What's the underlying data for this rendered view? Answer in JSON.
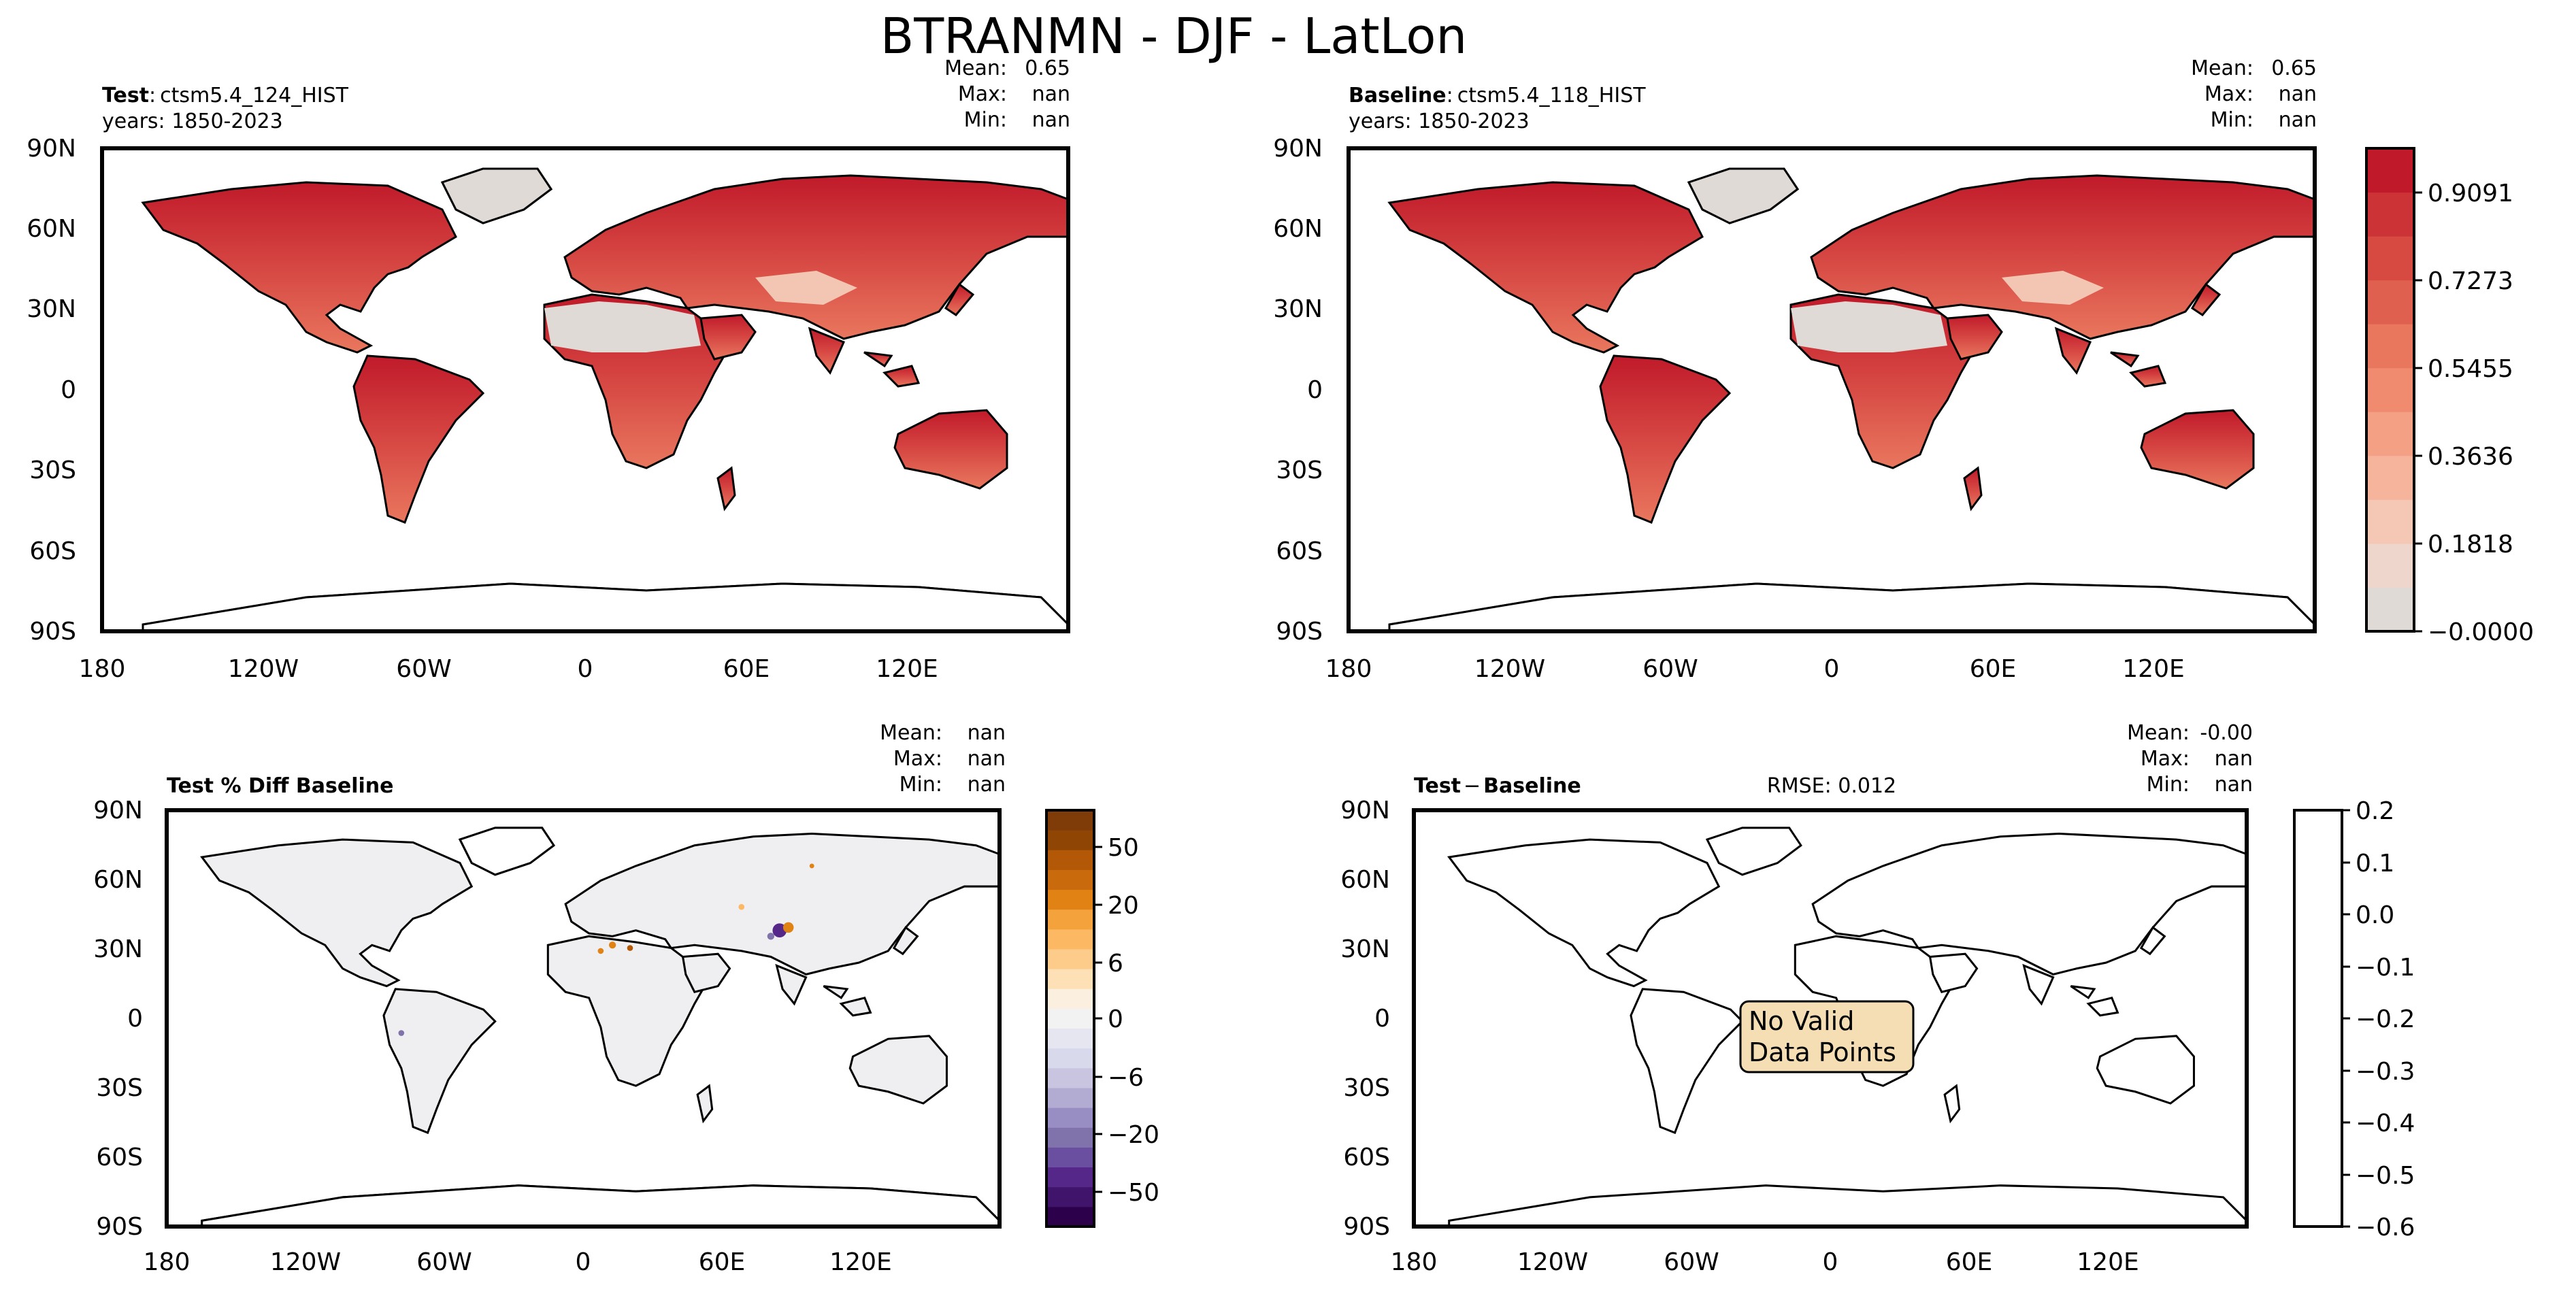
{
  "figure": {
    "title": "BTRANMN - DJF - LatLon"
  },
  "colors": {
    "land_low": "#dedad6",
    "land_mid": "#f08b70",
    "land_high": "#c01a2a",
    "ocean": "#ffffff",
    "diff_neutral": "#efeff2",
    "textbox_fill": "#f5deb3"
  },
  "axes_labels": {
    "lat_ticks": [
      "90N",
      "60N",
      "30N",
      "0",
      "30S",
      "60S",
      "90S"
    ],
    "lon_ticks": [
      "180",
      "120W",
      "60W",
      "0",
      "60E",
      "120E"
    ]
  },
  "panels": {
    "test": {
      "title_bold": "Test",
      "title_sep": ":",
      "case": "ctsm5.4_124_HIST",
      "years": "years: 1850-2023",
      "stats": {
        "mean_label": "Mean:",
        "mean": "0.65",
        "max_label": "Max:",
        "max": "nan",
        "min_label": "Min:",
        "min": "nan"
      }
    },
    "baseline": {
      "title_bold": "Baseline",
      "title_sep": ":",
      "case": "ctsm5.4_118_HIST",
      "years": "years: 1850-2023",
      "stats": {
        "mean_label": "Mean:",
        "mean": "0.65",
        "max_label": "Max:",
        "max": "nan",
        "min_label": "Min:",
        "min": "nan"
      }
    },
    "pctdiff": {
      "title": "Test % Diff Baseline",
      "stats": {
        "mean_label": "Mean:",
        "mean": "nan",
        "max_label": "Max:",
        "max": "nan",
        "min_label": "Min:",
        "min": "nan"
      }
    },
    "diff": {
      "title_bold_left": "Test",
      "title_minus": "−",
      "title_bold_right": "Baseline",
      "rmse": "RMSE: 0.012",
      "message": [
        "No Valid",
        "Data Points"
      ],
      "stats": {
        "mean_label": "Mean:",
        "mean": "-0.00",
        "max_label": "Max:",
        "max": "nan",
        "min_label": "Min:",
        "min": "nan"
      }
    }
  },
  "colorbars": {
    "main": {
      "ticks": [
        "0.9091",
        "0.7273",
        "0.5455",
        "0.3636",
        "0.1818",
        "−0.0000"
      ],
      "colors": [
        "#dfdad6",
        "#eed6cc",
        "#f5c8b6",
        "#f6b49c",
        "#f4a084",
        "#f08b70",
        "#e9775e",
        "#e0604f",
        "#d74a42",
        "#cc3336",
        "#c01a2a"
      ]
    },
    "pctdiff": {
      "ticks": [
        "50",
        "20",
        "6",
        "0",
        "−6",
        "−20",
        "−50"
      ],
      "colors": [
        "#2d004b",
        "#40146b",
        "#542788",
        "#6a4e9f",
        "#8073ac",
        "#998ec3",
        "#b2abd2",
        "#c9c5e1",
        "#d8daeb",
        "#e6e6f0",
        "#f2f2f2",
        "#fbf0df",
        "#fee0b6",
        "#fdcc8a",
        "#fdb863",
        "#f4a23c",
        "#e08214",
        "#c96a0c",
        "#b35806",
        "#8f4604",
        "#7f3b08"
      ]
    },
    "diff": {
      "ticks": [
        "0.2",
        "0.1",
        "0.0",
        "−0.1",
        "−0.2",
        "−0.3",
        "−0.4",
        "−0.5",
        "−0.6"
      ]
    }
  },
  "chart_data": [
    {
      "type": "heatmap",
      "panel": "Test",
      "title": "Test: ctsm5.4_124_HIST",
      "variable": "BTRANMN",
      "season": "DJF",
      "xlabel": "",
      "ylabel": "",
      "xlim": [
        -180,
        180
      ],
      "ylim": [
        -90,
        90
      ],
      "x_ticks": [
        "180",
        "120W",
        "60W",
        "0",
        "60E",
        "120E"
      ],
      "y_ticks": [
        "90N",
        "60N",
        "30N",
        "0",
        "30S",
        "60S",
        "90S"
      ],
      "colorbar": {
        "range": [
          0.0,
          1.0
        ],
        "ticks": [
          0.9091,
          0.7273,
          0.5455,
          0.3636,
          0.1818,
          0.0
        ]
      },
      "stats": {
        "mean": 0.65,
        "max": "nan",
        "min": "nan"
      }
    },
    {
      "type": "heatmap",
      "panel": "Baseline",
      "title": "Baseline: ctsm5.4_118_HIST",
      "variable": "BTRANMN",
      "season": "DJF",
      "xlim": [
        -180,
        180
      ],
      "ylim": [
        -90,
        90
      ],
      "colorbar": {
        "range": [
          0.0,
          1.0
        ],
        "ticks": [
          0.9091,
          0.7273,
          0.5455,
          0.3636,
          0.1818,
          0.0
        ]
      },
      "stats": {
        "mean": 0.65,
        "max": "nan",
        "min": "nan"
      }
    },
    {
      "type": "heatmap",
      "panel": "Test % Diff Baseline",
      "xlim": [
        -180,
        180
      ],
      "ylim": [
        -90,
        90
      ],
      "colorbar": {
        "ticks": [
          50,
          20,
          6,
          0,
          -6,
          -20,
          -50
        ]
      },
      "stats": {
        "mean": "nan",
        "max": "nan",
        "min": "nan"
      }
    },
    {
      "type": "heatmap",
      "panel": "Test - Baseline",
      "xlim": [
        -180,
        180
      ],
      "ylim": [
        -90,
        90
      ],
      "rmse": 0.012,
      "colorbar": {
        "range": [
          -0.6,
          0.2
        ],
        "ticks": [
          0.2,
          0.1,
          0.0,
          -0.1,
          -0.2,
          -0.3,
          -0.4,
          -0.5,
          -0.6
        ]
      },
      "note": "No Valid Data Points",
      "stats": {
        "mean": -0.0,
        "max": "nan",
        "min": "nan"
      }
    }
  ]
}
